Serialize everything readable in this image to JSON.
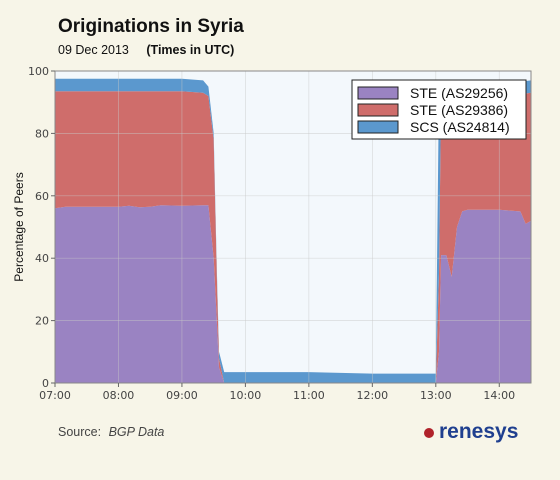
{
  "header": {
    "title": "Originations in Syria",
    "date": "09 Dec 2013",
    "time_note": "(Times in UTC)"
  },
  "footer": {
    "source_label": "Source:",
    "source_value": "BGP Data",
    "brand": "renesys"
  },
  "colors": {
    "plot_background": "#f3f8fc",
    "grid": "#c8c8c8"
  },
  "chart_data": {
    "type": "area",
    "stacked": true,
    "ylabel": "Percentage of Peers",
    "xlabel": "",
    "ylim": [
      0,
      100
    ],
    "xlim": [
      "07:00",
      "14:30"
    ],
    "yticks": [
      0,
      20,
      40,
      60,
      80,
      100
    ],
    "xticks": [
      "07:00",
      "08:00",
      "09:00",
      "10:00",
      "11:00",
      "12:00",
      "13:00",
      "14:00"
    ],
    "grid": true,
    "legend_position": "top-right",
    "x": [
      "07:00",
      "07:10",
      "07:30",
      "08:00",
      "08:10",
      "08:20",
      "08:30",
      "08:40",
      "09:00",
      "09:20",
      "09:25",
      "09:30",
      "09:33",
      "09:35",
      "09:40",
      "10:00",
      "11:00",
      "12:00",
      "12:55",
      "12:58",
      "13:00",
      "13:03",
      "13:05",
      "13:10",
      "13:15",
      "13:20",
      "13:25",
      "13:30",
      "13:40",
      "14:00",
      "14:20",
      "14:25",
      "14:30"
    ],
    "series": [
      {
        "name": "STE (AS29256)",
        "color": "#9a83c2",
        "values": [
          56,
          56.5,
          56.5,
          56.5,
          56.8,
          56.3,
          56.5,
          57,
          56.8,
          57,
          57,
          40,
          20,
          5,
          0,
          0,
          0,
          0,
          0,
          0,
          0,
          10,
          41,
          41,
          34,
          50,
          55,
          55.5,
          55.5,
          55.5,
          55,
          51,
          52
        ]
      },
      {
        "name": "STE (AS29386)",
        "color": "#cf6d6b",
        "values": [
          37.5,
          37,
          37,
          37,
          36.7,
          37.2,
          37,
          36.5,
          36.7,
          36,
          35,
          38,
          15,
          3,
          0,
          0,
          0,
          0,
          0,
          0,
          0,
          25,
          51.8,
          51.7,
          58.8,
          42.8,
          37.8,
          37.3,
          37.3,
          37.3,
          37.8,
          41.8,
          41
        ]
      },
      {
        "name": "SCS (AS24814)",
        "color": "#5b98ce",
        "values": [
          4,
          4,
          4,
          4,
          4,
          4,
          4,
          4,
          4,
          4,
          3,
          2,
          2,
          2,
          3.5,
          3.5,
          3.5,
          3,
          3,
          3,
          3,
          60,
          4,
          4,
          4,
          4,
          4,
          4,
          4,
          4,
          4,
          4,
          4
        ]
      }
    ]
  }
}
